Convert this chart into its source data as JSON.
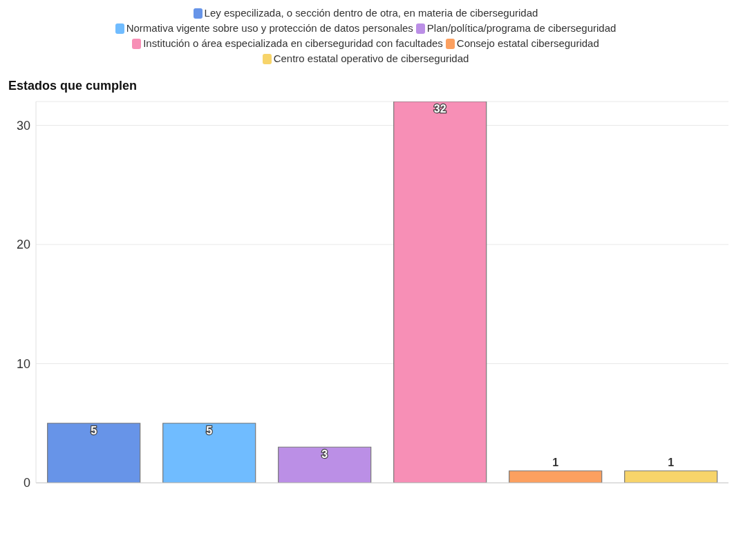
{
  "chart_data": {
    "type": "bar",
    "ylabel": "Estados que cumplen",
    "categories": [
      null,
      null,
      null,
      null,
      null,
      null
    ],
    "series": [
      {
        "name": "Ley especilizada, o sección dentro de otra, en materia de ciberseguridad",
        "color": "#6794e8",
        "values": [
          5,
          null,
          null,
          null,
          null,
          null
        ]
      },
      {
        "name": "Normativa vigente sobre uso y protección de datos personales",
        "color": "#70bcff",
        "values": [
          null,
          5,
          null,
          null,
          null,
          null
        ]
      },
      {
        "name": "Plan/política/programa de ciberseguridad",
        "color": "#bb8fe6",
        "values": [
          null,
          null,
          3,
          null,
          null,
          null
        ]
      },
      {
        "name": "Institución o área especializada en ciberseguridad con facultades",
        "color": "#f78fb6",
        "values": [
          null,
          null,
          null,
          32,
          null,
          null
        ]
      },
      {
        "name": "Consejo estatal ciberseguridad",
        "color": "#fca060",
        "values": [
          null,
          null,
          null,
          null,
          1,
          null
        ]
      },
      {
        "name": "Centro estatal operativo de ciberseguridad",
        "color": "#f7d46a",
        "values": [
          null,
          null,
          null,
          null,
          null,
          1
        ]
      }
    ],
    "ylim": [
      0,
      32
    ],
    "yticks": [
      0,
      10,
      20,
      30
    ],
    "grid": "y",
    "legend": "top",
    "data_labels": true,
    "tick_labels": "y"
  }
}
